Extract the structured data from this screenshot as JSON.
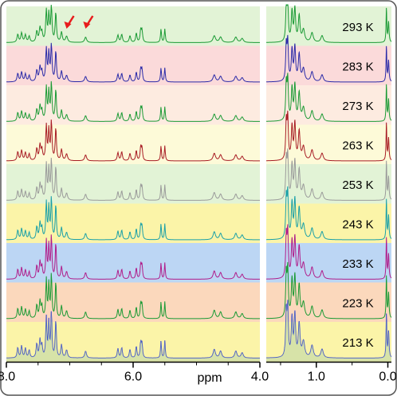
{
  "chart_data": {
    "type": "line",
    "title": "",
    "xlabel": "ppm",
    "ylabel": "",
    "left_panel": {
      "xlim": [
        8.0,
        4.0
      ],
      "ticks": [
        "8.0",
        "6.0",
        "4.0"
      ],
      "tick_values": [
        8.0,
        6.0,
        4.0
      ]
    },
    "right_panel": {
      "xlim": [
        1.7,
        -0.05
      ],
      "ticks": [
        "1.0",
        "0.0"
      ],
      "tick_values": [
        1.0,
        0.0
      ]
    },
    "series": [
      {
        "name": "293 K",
        "temperature_K": 293,
        "color": "#1a9a34",
        "band": "#e2f3d6"
      },
      {
        "name": "283 K",
        "temperature_K": 283,
        "color": "#2a2aa8",
        "band": "#fbdada"
      },
      {
        "name": "273 K",
        "temperature_K": 273,
        "color": "#1a9a34",
        "band": "#fdebe0"
      },
      {
        "name": "263 K",
        "temperature_K": 263,
        "color": "#a81c24",
        "band": "#fdfad8"
      },
      {
        "name": "253 K",
        "temperature_K": 253,
        "color": "#9a9a9a",
        "band": "#e2f3d6"
      },
      {
        "name": "243 K",
        "temperature_K": 243,
        "color": "#1aa0a8",
        "band": "#fbf4a8"
      },
      {
        "name": "233 K",
        "temperature_K": 233,
        "color": "#b01c8a",
        "band": "#bcd6f4"
      },
      {
        "name": "223 K",
        "temperature_K": 223,
        "color": "#1a9a34",
        "band": "#fbd8bc"
      },
      {
        "name": "213 K",
        "temperature_K": 213,
        "color": "#2a3ad0",
        "band": "#fbf4a8"
      }
    ],
    "annotations": [
      {
        "type": "arrow",
        "color": "#e81c1c",
        "points_to_ppm": 7.05
      },
      {
        "type": "arrow",
        "color": "#e81c1c",
        "points_to_ppm": 6.75
      }
    ]
  }
}
